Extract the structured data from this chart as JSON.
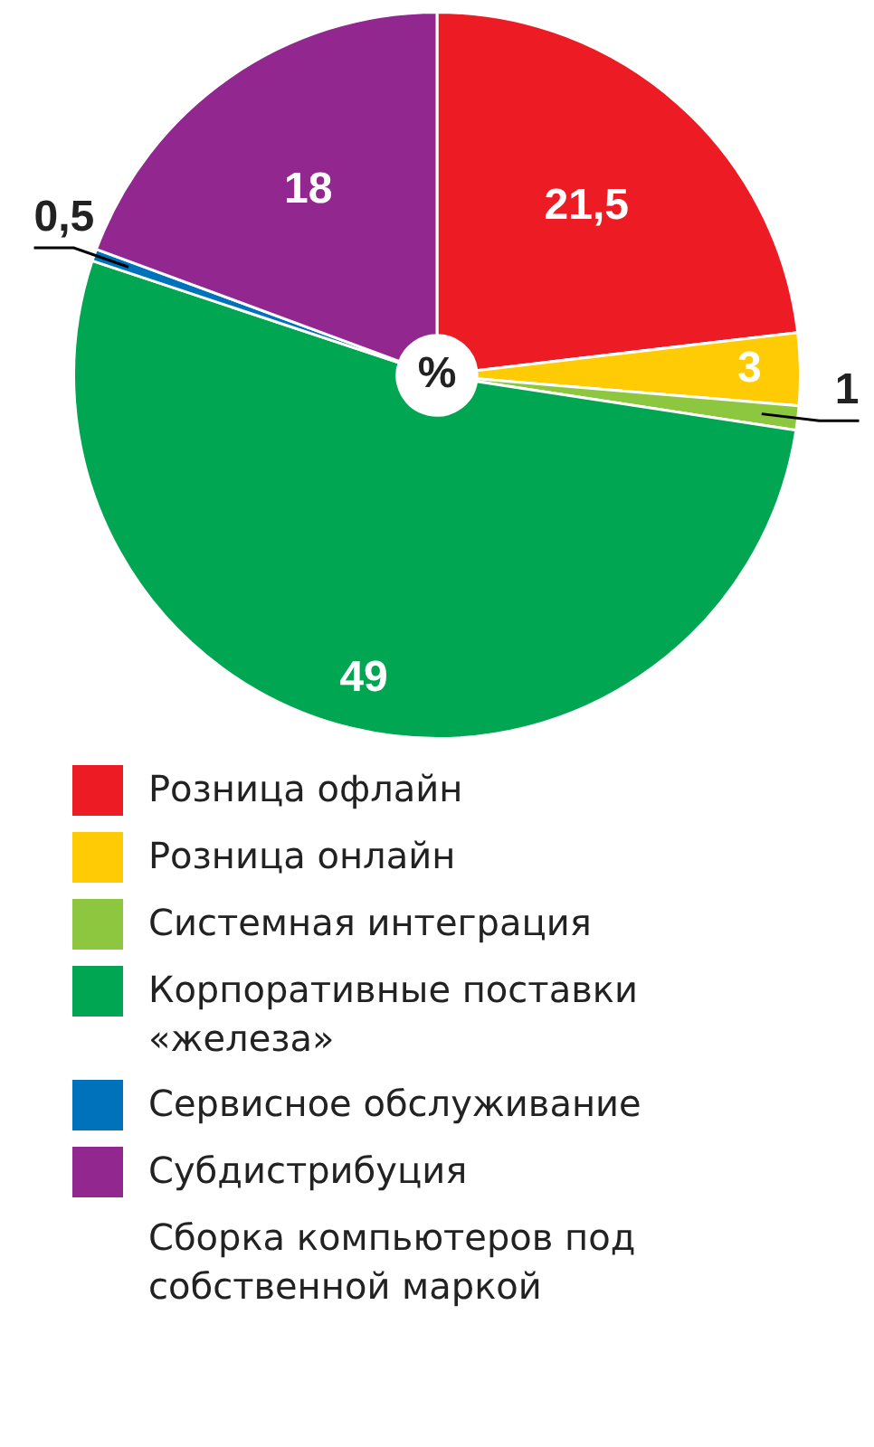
{
  "chart_data": {
    "type": "pie",
    "annotations": [
      "%"
    ],
    "categories": [
      "Розница офлайн",
      "Розница онлайн",
      "Системная интеграция",
      "Корпоративные поставки «железа»",
      "Сервисное обслуживание",
      "Субдистрибуция",
      "Сборка компьютеров под собственной маркой"
    ],
    "values": [
      21.5,
      3,
      1,
      49,
      0.5,
      18,
      0
    ],
    "colors": [
      "#ed1c24",
      "#ffcb05",
      "#8dc63f",
      "#00a651",
      "#0072bc",
      "#92278f",
      "#ffffff"
    ],
    "value_labels": [
      "21,5",
      "3",
      "1",
      "49",
      "0,5",
      "18",
      null
    ],
    "legend": "bottom"
  }
}
